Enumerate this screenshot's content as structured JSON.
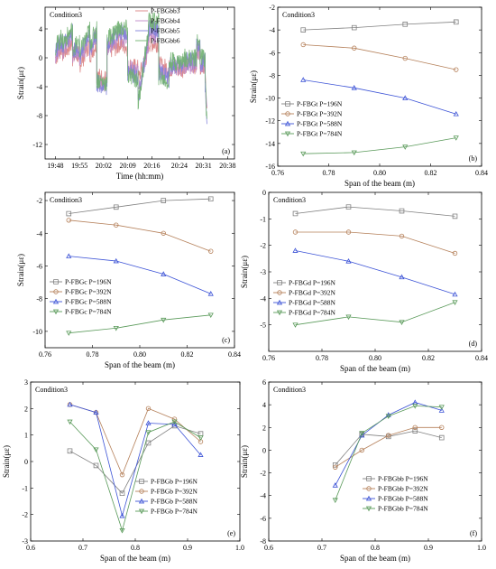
{
  "chart_data": [
    {
      "type": "line",
      "panel_label": "(a)",
      "annotation": "Condition3",
      "xlabel": "Time (hh:mm)",
      "ylabel": "Strain(με)",
      "xlim": [
        1185,
        1240
      ],
      "ylim": [
        -14,
        7
      ],
      "x_ticks": [
        "19:48",
        "19:55",
        "20:02",
        "20:09",
        "20:16",
        "20:24",
        "20:31",
        "20:38"
      ],
      "x_tick_values": [
        1188,
        1195,
        1202,
        1209,
        1216,
        1224,
        1231,
        1238
      ],
      "y_ticks": [
        -12,
        -8,
        -4,
        0,
        4
      ],
      "legend_position": "top-right",
      "series": [
        {
          "name": "P-FBGbb3",
          "color": "#d98080",
          "x": [
            1188,
            1190,
            1190,
            1193,
            1193,
            1195,
            1195,
            1198,
            1198,
            1200,
            1200,
            1203,
            1203,
            1206,
            1206,
            1209,
            1209,
            1212,
            1212,
            1215,
            1215,
            1218,
            1218,
            1221,
            1221,
            1225,
            1225,
            1229,
            1229,
            1230,
            1230,
            1231.5,
            1231.5,
            1232
          ],
          "values": [
            0,
            1.5,
            0.5,
            2,
            0,
            0.5,
            -1,
            2,
            0.5,
            2,
            -2.5,
            -3,
            1,
            1.5,
            2,
            1.5,
            -1,
            -1.5,
            -3,
            1,
            2,
            2,
            -1,
            -1.5,
            -1.5,
            -1.5,
            -1,
            -1,
            1,
            1,
            -1,
            -1,
            -2.5,
            -7
          ]
        },
        {
          "name": "P-FBGbb4",
          "color": "#c08bc8",
          "x": [
            1188,
            1190,
            1190,
            1193,
            1193,
            1195,
            1195,
            1198,
            1198,
            1200,
            1200,
            1203,
            1203,
            1206,
            1206,
            1209,
            1209,
            1212,
            1212,
            1215,
            1215,
            1218,
            1218,
            1221,
            1221,
            1225,
            1225,
            1229,
            1229,
            1230,
            1230,
            1231.5,
            1231.5,
            1232
          ],
          "values": [
            0.5,
            2,
            1,
            3,
            0.5,
            1,
            -0.5,
            3,
            1,
            3,
            -3,
            -3.5,
            1.5,
            2.5,
            3,
            2.5,
            -1.5,
            -2,
            -5,
            2,
            3,
            3,
            -1.5,
            -2.5,
            -1.5,
            -1.5,
            -1,
            -1,
            1,
            1,
            -1,
            -1,
            -3,
            -8
          ]
        },
        {
          "name": "P-FBGbb5",
          "color": "#8080d9",
          "x": [
            1188,
            1190,
            1190,
            1193,
            1193,
            1195,
            1195,
            1198,
            1198,
            1200,
            1200,
            1203,
            1203,
            1206,
            1206,
            1209,
            1209,
            1212,
            1212,
            1215,
            1215,
            1218,
            1218,
            1221,
            1221,
            1225,
            1225,
            1229,
            1229,
            1230,
            1230,
            1231.5,
            1231.5,
            1232
          ],
          "values": [
            1,
            2.5,
            1.5,
            3.5,
            1,
            1.5,
            0,
            3.5,
            1.5,
            3.5,
            -3.5,
            -4,
            2,
            3.5,
            3.5,
            3.5,
            -2,
            -2.5,
            -6,
            3,
            4,
            4,
            -2,
            -3,
            -1,
            -1,
            -0.5,
            -0.5,
            1.5,
            1.5,
            -0.5,
            -0.5,
            -3.5,
            -9
          ]
        },
        {
          "name": "P-FBGbb6",
          "color": "#70b070",
          "x": [
            1188,
            1190,
            1190,
            1193,
            1193,
            1195,
            1195,
            1198,
            1198,
            1200,
            1200,
            1203,
            1203,
            1206,
            1206,
            1209,
            1209,
            1212,
            1212,
            1215,
            1215,
            1218,
            1218,
            1221,
            1221,
            1225,
            1225,
            1229,
            1229,
            1230,
            1230,
            1231.5,
            1231.5,
            1232
          ],
          "values": [
            1.5,
            3,
            2,
            4,
            1.5,
            2,
            0.5,
            4,
            2,
            4,
            -3,
            -3.5,
            2.5,
            4,
            4,
            4,
            -2.5,
            -3,
            -6.5,
            3.5,
            5,
            5,
            -2.5,
            -3.5,
            -0.5,
            -0.5,
            0,
            0,
            2,
            2,
            0,
            0,
            -3,
            -9.5
          ]
        }
      ]
    },
    {
      "type": "line",
      "panel_label": "(b)",
      "annotation": "Condition3",
      "xlabel": "Span of the beam (m)",
      "ylabel": "Strain(με)",
      "xlim": [
        0.76,
        0.84
      ],
      "ylim": [
        -16,
        -2
      ],
      "x_ticks": [
        "0.76",
        "0.78",
        "0.80",
        "0.82",
        "0.84"
      ],
      "x_tick_values": [
        0.76,
        0.78,
        0.8,
        0.82,
        0.84
      ],
      "y_ticks": [
        "-16",
        "-14",
        "-12",
        "-10",
        "-8",
        "-6",
        "-4",
        "-2"
      ],
      "y_tick_values": [
        -16,
        -14,
        -12,
        -10,
        -8,
        -6,
        -4,
        -2
      ],
      "legend_position": "bottom-left",
      "x": [
        0.77,
        0.79,
        0.81,
        0.83
      ],
      "series": [
        {
          "name": "P-FBGt  P=196N",
          "color": "#808080",
          "marker": "square",
          "values": [
            -4.0,
            -3.8,
            -3.5,
            -3.3
          ]
        },
        {
          "name": "P-FBGt  P=392N",
          "color": "#b5805a",
          "marker": "circle",
          "values": [
            -5.3,
            -5.6,
            -6.5,
            -7.5
          ]
        },
        {
          "name": "P-FBGt  P=588N",
          "color": "#3b52d6",
          "marker": "triangle",
          "values": [
            -8.4,
            -9.1,
            -10.0,
            -11.4
          ]
        },
        {
          "name": "P-FBGt  P=784N",
          "color": "#5a9a5a",
          "marker": "triangle-down",
          "values": [
            -14.9,
            -14.8,
            -14.3,
            -13.5
          ]
        }
      ]
    },
    {
      "type": "line",
      "panel_label": "(c)",
      "annotation": "Condition3",
      "xlabel": "Span of the beam (m)",
      "ylabel": "Strain(με)",
      "xlim": [
        0.76,
        0.84
      ],
      "ylim": [
        -11,
        -1.5
      ],
      "x_ticks": [
        "0.76",
        "0.78",
        "0.80",
        "0.82",
        "0.84"
      ],
      "x_tick_values": [
        0.76,
        0.78,
        0.8,
        0.82,
        0.84
      ],
      "y_ticks": [
        "-10",
        "-8",
        "-6",
        "-4",
        "-2"
      ],
      "y_tick_values": [
        -10,
        -8,
        -6,
        -4,
        -2
      ],
      "legend_position": "bottom-left",
      "x": [
        0.77,
        0.79,
        0.81,
        0.83
      ],
      "series": [
        {
          "name": "P-FBGc  P=196N",
          "color": "#808080",
          "marker": "square",
          "values": [
            -2.8,
            -2.4,
            -2.0,
            -1.9
          ]
        },
        {
          "name": "P-FBGc  P=392N",
          "color": "#b5805a",
          "marker": "circle",
          "values": [
            -3.2,
            -3.5,
            -4.0,
            -5.1
          ]
        },
        {
          "name": "P-FBGc  P=588N",
          "color": "#3b52d6",
          "marker": "triangle",
          "values": [
            -5.4,
            -5.7,
            -6.5,
            -7.7
          ]
        },
        {
          "name": "P-FBGc  P=784N",
          "color": "#5a9a5a",
          "marker": "triangle-down",
          "values": [
            -10.1,
            -9.8,
            -9.3,
            -9.0
          ]
        }
      ]
    },
    {
      "type": "line",
      "panel_label": "(d)",
      "annotation": "Condition3",
      "xlabel": "Span of the beam (m)",
      "ylabel": "Strain(με)",
      "xlim": [
        0.76,
        0.84
      ],
      "ylim": [
        -6,
        0
      ],
      "x_ticks": [
        "0.76",
        "0.78",
        "0.80",
        "0.82",
        "0.84"
      ],
      "x_tick_values": [
        0.76,
        0.78,
        0.8,
        0.82,
        0.84
      ],
      "y_ticks": [
        "-5",
        "-4",
        "-3",
        "-2",
        "-1",
        "0"
      ],
      "y_tick_values": [
        -5,
        -4,
        -3,
        -2,
        -1,
        0
      ],
      "legend_position": "bottom-left",
      "x": [
        0.77,
        0.79,
        0.81,
        0.83
      ],
      "series": [
        {
          "name": "P-FBGd  P=196N",
          "color": "#808080",
          "marker": "square",
          "values": [
            -0.8,
            -0.55,
            -0.7,
            -0.9
          ]
        },
        {
          "name": "P-FBGd  P=392N",
          "color": "#b5805a",
          "marker": "circle",
          "values": [
            -1.5,
            -1.5,
            -1.65,
            -2.3
          ]
        },
        {
          "name": "P-FBGd  P=588N",
          "color": "#3b52d6",
          "marker": "triangle",
          "values": [
            -2.2,
            -2.6,
            -3.2,
            -3.85
          ]
        },
        {
          "name": "P-FBGd  P=784N",
          "color": "#5a9a5a",
          "marker": "triangle-down",
          "values": [
            -5.0,
            -4.7,
            -4.9,
            -4.15
          ]
        }
      ]
    },
    {
      "type": "line",
      "panel_label": "(e)",
      "annotation": "Condition3",
      "xlabel": "Span of the beam (m)",
      "ylabel": "Strain(με)",
      "xlim": [
        0.6,
        1.0
      ],
      "ylim": [
        -3,
        3
      ],
      "x_ticks": [
        "0.6",
        "0.7",
        "0.8",
        "0.9",
        "1.0"
      ],
      "x_tick_values": [
        0.6,
        0.7,
        0.8,
        0.9,
        1.0
      ],
      "y_ticks": [
        "-3",
        "-2",
        "-1",
        "0",
        "1",
        "2",
        "3"
      ],
      "y_tick_values": [
        -3,
        -2,
        -1,
        0,
        1,
        2,
        3
      ],
      "legend_position": "bottom-right",
      "x": [
        0.675,
        0.725,
        0.775,
        0.825,
        0.875,
        0.925
      ],
      "series": [
        {
          "name": "P-FBGb  P=196N",
          "color": "#808080",
          "marker": "square",
          "values": [
            0.4,
            -0.15,
            -1.2,
            0.7,
            1.35,
            1.05
          ]
        },
        {
          "name": "P-FBGb  P=392N",
          "color": "#b5805a",
          "marker": "circle",
          "values": [
            2.15,
            1.85,
            -0.5,
            2.0,
            1.6,
            0.75
          ]
        },
        {
          "name": "P-FBGb  P=588N",
          "color": "#3b52d6",
          "marker": "triangle",
          "values": [
            2.15,
            1.85,
            -2.05,
            1.45,
            1.4,
            0.25
          ]
        },
        {
          "name": "P-FBGb  P=784N",
          "color": "#5a9a5a",
          "marker": "triangle-down",
          "values": [
            1.5,
            0.45,
            -2.6,
            1.1,
            1.5,
            0.9
          ]
        }
      ]
    },
    {
      "type": "line",
      "panel_label": "(f)",
      "annotation": "Condition3",
      "xlabel": "Span of the beam (m)",
      "ylabel": "Strain(με)",
      "xlim": [
        0.6,
        1.0
      ],
      "ylim": [
        -8,
        6
      ],
      "x_ticks": [
        "0.6",
        "0.7",
        "0.8",
        "0.9",
        "1.0"
      ],
      "x_tick_values": [
        0.6,
        0.7,
        0.8,
        0.9,
        1.0
      ],
      "y_ticks": [
        "-8",
        "-6",
        "-4",
        "-2",
        "0",
        "2",
        "4",
        "6"
      ],
      "y_tick_values": [
        -8,
        -6,
        -4,
        -2,
        0,
        2,
        4,
        6
      ],
      "legend_position": "bottom-right",
      "x": [
        0.725,
        0.775,
        0.825,
        0.875,
        0.925
      ],
      "series": [
        {
          "name": "P-FBGbb  P=196N",
          "color": "#808080",
          "marker": "square",
          "values": [
            -1.3,
            1.4,
            1.2,
            1.7,
            1.1
          ]
        },
        {
          "name": "P-FBGbb  P=392N",
          "color": "#b5805a",
          "marker": "circle",
          "values": [
            -1.5,
            0.0,
            1.3,
            2.0,
            2.0
          ]
        },
        {
          "name": "P-FBGbb  P=588N",
          "color": "#3b52d6",
          "marker": "triangle",
          "values": [
            -3.1,
            1.3,
            3.1,
            4.2,
            3.5
          ]
        },
        {
          "name": "P-FBGbb  P=784N",
          "color": "#5a9a5a",
          "marker": "triangle-down",
          "values": [
            -4.4,
            1.5,
            3.0,
            3.9,
            3.8
          ]
        }
      ]
    }
  ]
}
